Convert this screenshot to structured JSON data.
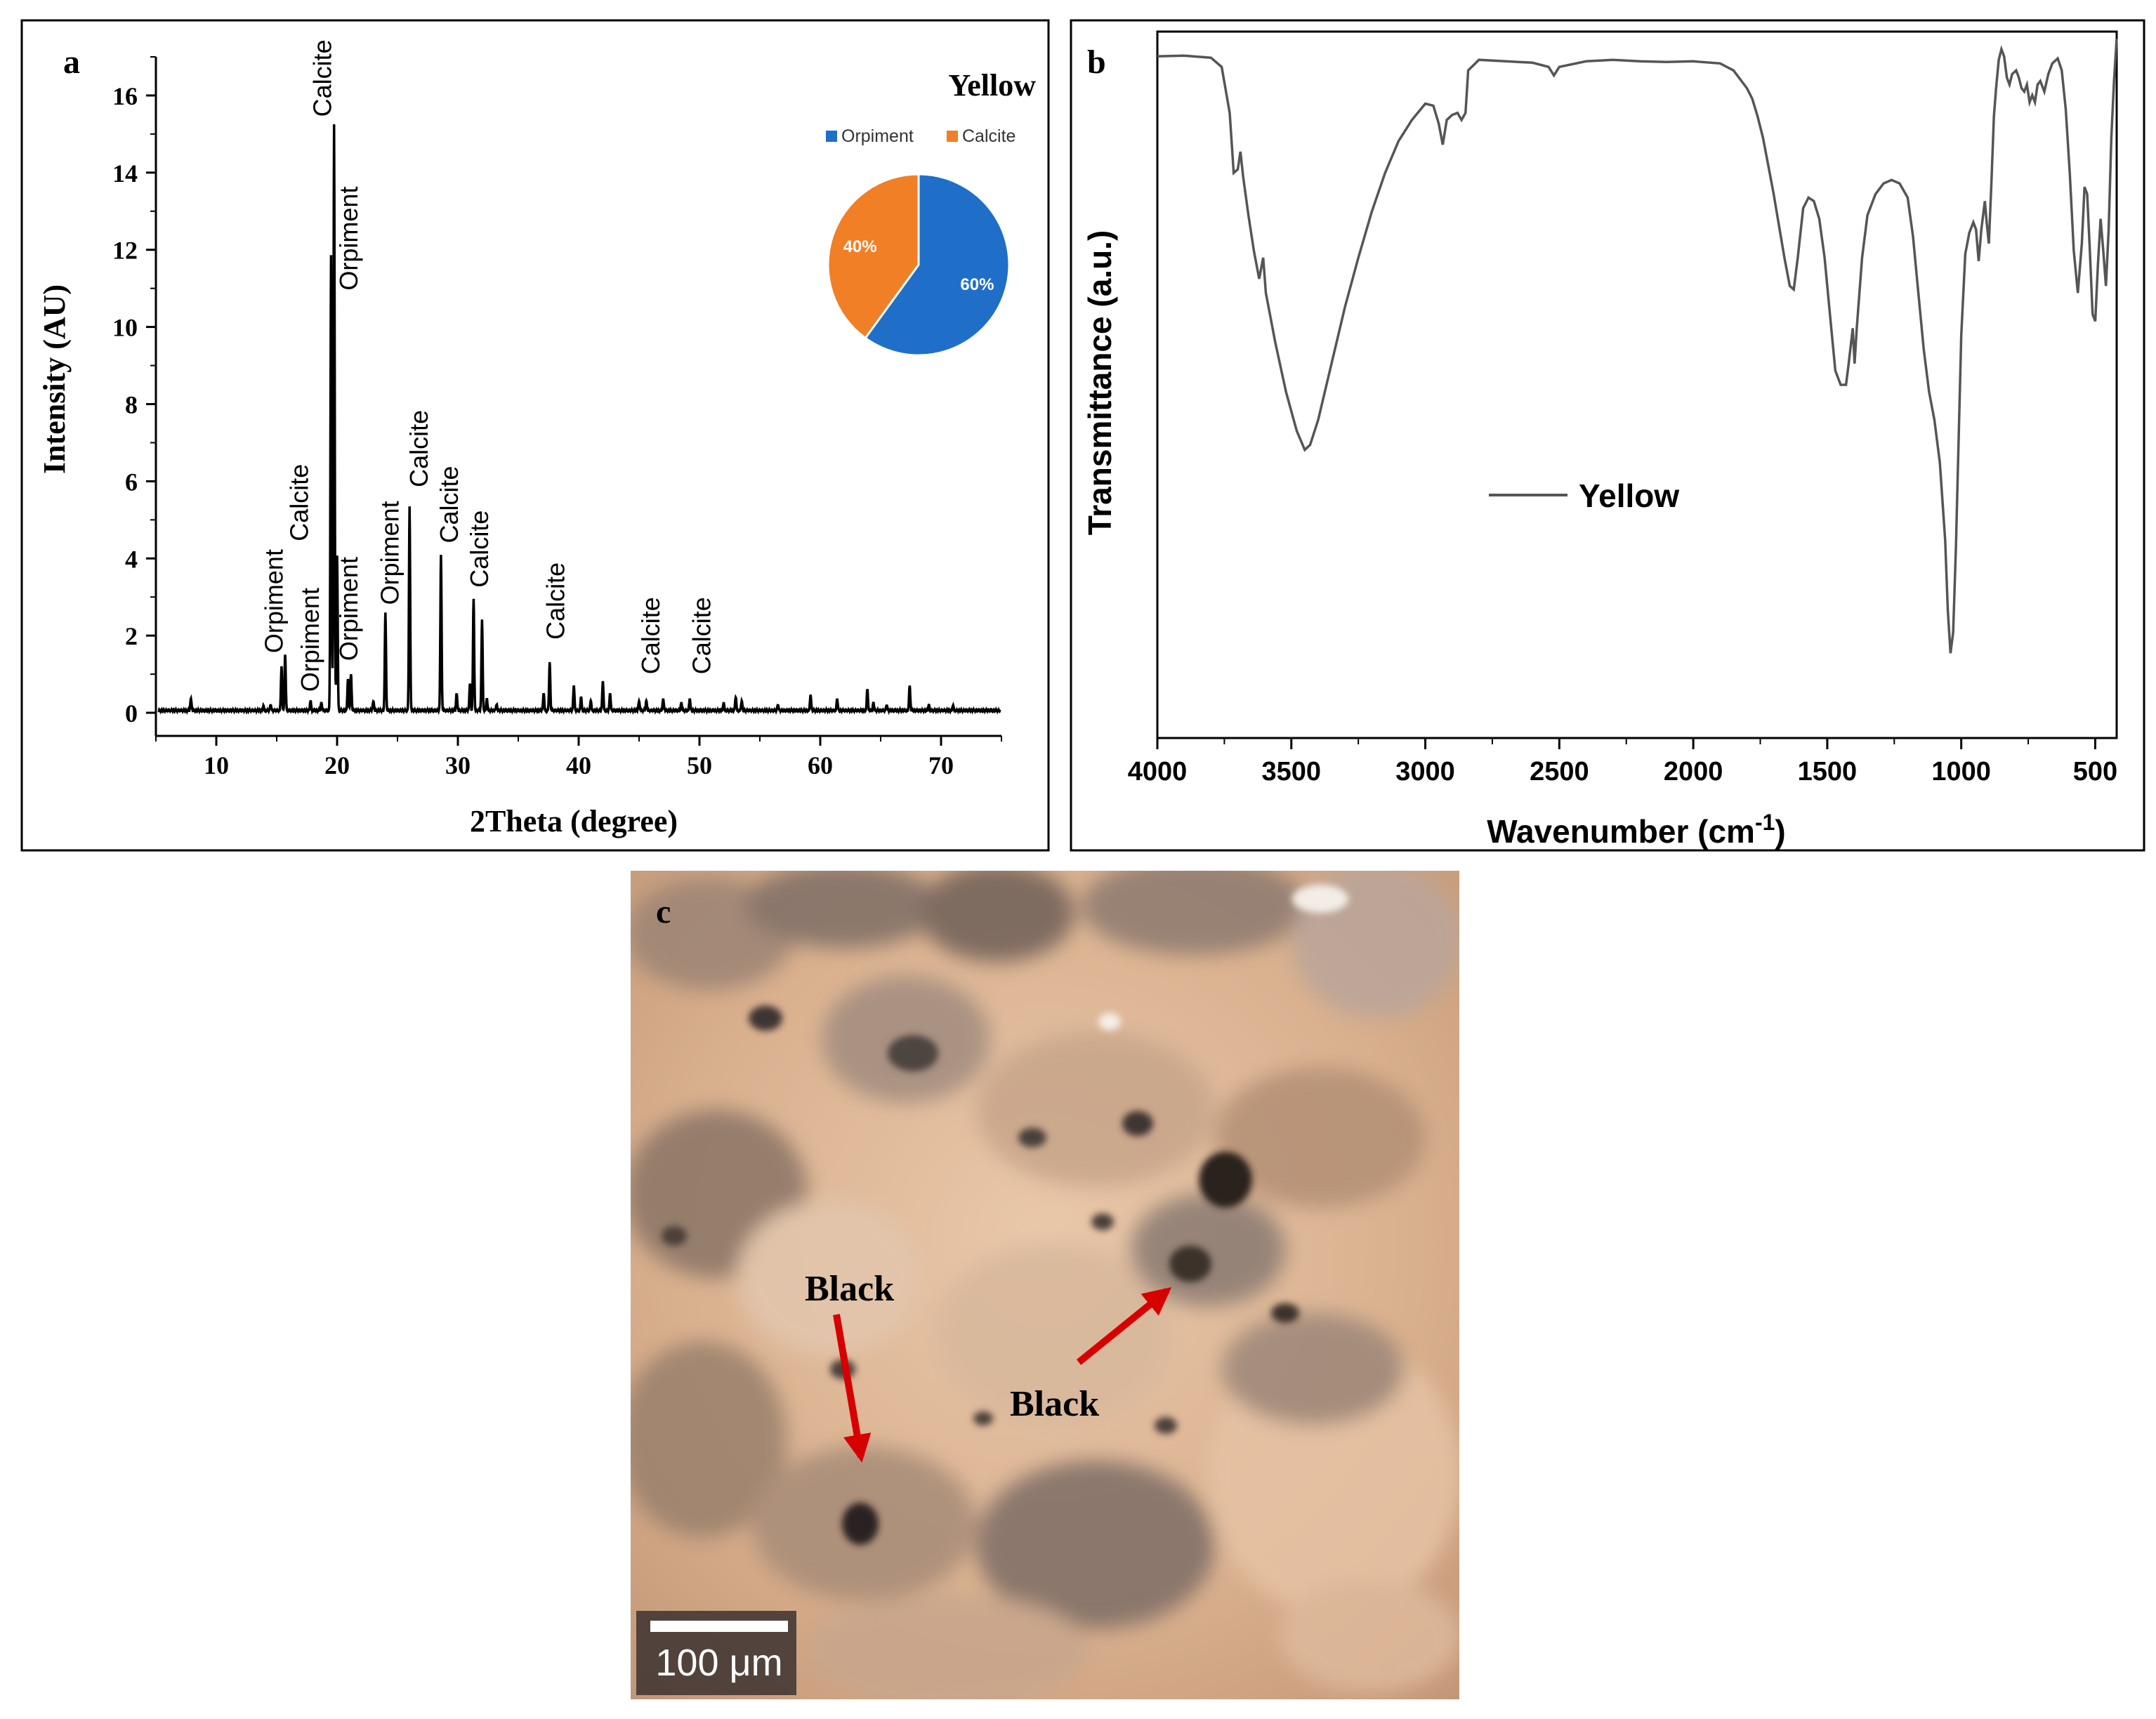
{
  "colors": {
    "xrd_line": "#000000",
    "ftir_line": "#555555",
    "orpiment": "#1f6fc8",
    "calcite": "#f07f25",
    "arrow": "#d60000",
    "frame": "#000000"
  },
  "chart_data": [
    {
      "panel": "a",
      "type": "line",
      "title": "Yellow",
      "xlabel": "2Theta (degree)",
      "ylabel": "Intensity (AU)",
      "xlim": [
        5,
        75
      ],
      "ylim": [
        -0.6,
        17
      ],
      "xticks": [
        10,
        20,
        30,
        40,
        50,
        60,
        70
      ],
      "yticks": [
        0,
        2,
        4,
        6,
        8,
        10,
        12,
        14,
        16
      ],
      "grid": false,
      "baseline": 0.06,
      "peaks": [
        {
          "x": 7.9,
          "y": 0.32
        },
        {
          "x": 13.9,
          "y": 0.12
        },
        {
          "x": 14.5,
          "y": 0.15
        },
        {
          "x": 15.4,
          "y": 1.15
        },
        {
          "x": 15.7,
          "y": 1.45
        },
        {
          "x": 17.8,
          "y": 0.25
        },
        {
          "x": 18.7,
          "y": 0.2
        },
        {
          "x": 19.5,
          "y": 11.8
        },
        {
          "x": 19.75,
          "y": 15.2
        },
        {
          "x": 20.0,
          "y": 4.0
        },
        {
          "x": 20.9,
          "y": 0.8
        },
        {
          "x": 21.15,
          "y": 0.95
        },
        {
          "x": 23.0,
          "y": 0.25
        },
        {
          "x": 24.0,
          "y": 2.55
        },
        {
          "x": 26.0,
          "y": 5.3
        },
        {
          "x": 28.6,
          "y": 4.05
        },
        {
          "x": 29.9,
          "y": 0.45
        },
        {
          "x": 31.0,
          "y": 0.7
        },
        {
          "x": 31.3,
          "y": 2.9
        },
        {
          "x": 32.0,
          "y": 2.35
        },
        {
          "x": 32.4,
          "y": 0.3
        },
        {
          "x": 33.2,
          "y": 0.15
        },
        {
          "x": 37.1,
          "y": 0.45
        },
        {
          "x": 37.6,
          "y": 1.25
        },
        {
          "x": 39.6,
          "y": 0.65
        },
        {
          "x": 40.2,
          "y": 0.35
        },
        {
          "x": 41.0,
          "y": 0.25
        },
        {
          "x": 42.0,
          "y": 0.75
        },
        {
          "x": 42.6,
          "y": 0.45
        },
        {
          "x": 45.0,
          "y": 0.25
        },
        {
          "x": 45.6,
          "y": 0.25
        },
        {
          "x": 47.0,
          "y": 0.3
        },
        {
          "x": 48.5,
          "y": 0.2
        },
        {
          "x": 49.2,
          "y": 0.3
        },
        {
          "x": 52.0,
          "y": 0.2
        },
        {
          "x": 53.0,
          "y": 0.35
        },
        {
          "x": 53.5,
          "y": 0.25
        },
        {
          "x": 56.5,
          "y": 0.15
        },
        {
          "x": 59.2,
          "y": 0.4
        },
        {
          "x": 61.4,
          "y": 0.3
        },
        {
          "x": 63.9,
          "y": 0.55
        },
        {
          "x": 64.4,
          "y": 0.2
        },
        {
          "x": 65.5,
          "y": 0.15
        },
        {
          "x": 67.4,
          "y": 0.65
        },
        {
          "x": 69.0,
          "y": 0.15
        },
        {
          "x": 71.0,
          "y": 0.12
        }
      ],
      "annotations": [
        {
          "text": "Orpiment",
          "x": 14.8,
          "y": 1.4
        },
        {
          "text": "Calcite",
          "x": 16.9,
          "y": 4.3
        },
        {
          "text": "Orpiment",
          "x": 17.8,
          "y": 0.4
        },
        {
          "text": "Calcite",
          "x": 18.8,
          "y": 15.3
        },
        {
          "text": "Orpiment",
          "x": 21.0,
          "y": 10.8
        },
        {
          "text": "Orpiment",
          "x": 21.0,
          "y": 1.2
        },
        {
          "text": "Orpiment",
          "x": 24.4,
          "y": 2.65
        },
        {
          "text": "Calcite",
          "x": 26.8,
          "y": 5.7
        },
        {
          "text": "Calcite",
          "x": 29.3,
          "y": 4.25
        },
        {
          "text": "Calcite",
          "x": 31.8,
          "y": 3.1
        },
        {
          "text": "Calcite",
          "x": 38.1,
          "y": 1.75
        },
        {
          "text": "Calcite",
          "x": 46.0,
          "y": 0.85
        },
        {
          "text": "Calcite",
          "x": 50.2,
          "y": 0.85
        }
      ],
      "inset_pie": {
        "type": "pie",
        "legend": [
          "Orpiment",
          "Calcite"
        ],
        "slices": [
          {
            "name": "Orpiment",
            "value": 60,
            "label": "60%"
          },
          {
            "name": "Calcite",
            "value": 40,
            "label": "40%"
          }
        ]
      }
    },
    {
      "panel": "b",
      "type": "line",
      "xlabel_main": "Wavenumber (cm",
      "xlabel_sup": "-1",
      "xlabel_close": ")",
      "ylabel": "Transmittance (a.u.)",
      "legend": [
        "Yellow"
      ],
      "xlim": [
        4000,
        420
      ],
      "xreversed": true,
      "ylim": [
        0,
        100
      ],
      "yticks_labels": false,
      "xticks": [
        4000,
        3500,
        3000,
        2500,
        2000,
        1500,
        1000,
        500
      ],
      "series": [
        {
          "name": "Yellow",
          "points": [
            [
              4000,
              96.5
            ],
            [
              3900,
              96.6
            ],
            [
              3800,
              96.3
            ],
            [
              3760,
              95.0
            ],
            [
              3730,
              88.5
            ],
            [
              3715,
              80.0
            ],
            [
              3700,
              80.5
            ],
            [
              3690,
              83.0
            ],
            [
              3680,
              79.5
            ],
            [
              3660,
              74.0
            ],
            [
              3640,
              69.0
            ],
            [
              3620,
              65.0
            ],
            [
              3605,
              68.0
            ],
            [
              3595,
              63.0
            ],
            [
              3560,
              56.0
            ],
            [
              3520,
              49.0
            ],
            [
              3480,
              43.5
            ],
            [
              3450,
              40.8
            ],
            [
              3430,
              41.5
            ],
            [
              3400,
              45.0
            ],
            [
              3350,
              53.0
            ],
            [
              3300,
              61.0
            ],
            [
              3250,
              68.0
            ],
            [
              3200,
              74.5
            ],
            [
              3150,
              80.0
            ],
            [
              3100,
              84.5
            ],
            [
              3050,
              87.5
            ],
            [
              3000,
              89.8
            ],
            [
              2970,
              89.5
            ],
            [
              2950,
              87.0
            ],
            [
              2935,
              84.0
            ],
            [
              2920,
              87.5
            ],
            [
              2900,
              88.2
            ],
            [
              2880,
              88.5
            ],
            [
              2865,
              87.5
            ],
            [
              2850,
              88.5
            ],
            [
              2840,
              94.5
            ],
            [
              2800,
              96.0
            ],
            [
              2700,
              95.8
            ],
            [
              2600,
              95.6
            ],
            [
              2540,
              95.0
            ],
            [
              2520,
              93.8
            ],
            [
              2500,
              95.0
            ],
            [
              2400,
              95.8
            ],
            [
              2300,
              96.0
            ],
            [
              2200,
              95.8
            ],
            [
              2100,
              95.7
            ],
            [
              2000,
              95.8
            ],
            [
              1900,
              95.5
            ],
            [
              1850,
              94.5
            ],
            [
              1800,
              92.0
            ],
            [
              1780,
              90.5
            ],
            [
              1760,
              88.0
            ],
            [
              1740,
              85.0
            ],
            [
              1720,
              81.0
            ],
            [
              1700,
              77.0
            ],
            [
              1680,
              72.5
            ],
            [
              1660,
              68.0
            ],
            [
              1640,
              64.0
            ],
            [
              1625,
              63.5
            ],
            [
              1610,
              68.0
            ],
            [
              1590,
              75.0
            ],
            [
              1570,
              76.5
            ],
            [
              1550,
              76.0
            ],
            [
              1530,
              73.5
            ],
            [
              1510,
              68.0
            ],
            [
              1490,
              60.0
            ],
            [
              1470,
              52.0
            ],
            [
              1450,
              50.0
            ],
            [
              1430,
              50.0
            ],
            [
              1420,
              53.0
            ],
            [
              1405,
              58.0
            ],
            [
              1398,
              53.0
            ],
            [
              1390,
              58.0
            ],
            [
              1370,
              68.0
            ],
            [
              1350,
              74.0
            ],
            [
              1320,
              77.0
            ],
            [
              1290,
              78.5
            ],
            [
              1260,
              79.0
            ],
            [
              1230,
              78.5
            ],
            [
              1200,
              76.5
            ],
            [
              1180,
              71.0
            ],
            [
              1160,
              63.0
            ],
            [
              1140,
              55.0
            ],
            [
              1120,
              49.0
            ],
            [
              1100,
              45.0
            ],
            [
              1080,
              39.0
            ],
            [
              1060,
              28.0
            ],
            [
              1050,
              18.0
            ],
            [
              1040,
              12.0
            ],
            [
              1030,
              15.0
            ],
            [
              1020,
              27.0
            ],
            [
              1010,
              42.0
            ],
            [
              1000,
              57.0
            ],
            [
              985,
              68.5
            ],
            [
              970,
              71.5
            ],
            [
              955,
              73.0
            ],
            [
              945,
              72.0
            ],
            [
              935,
              67.5
            ],
            [
              925,
              72.0
            ],
            [
              912,
              76.0
            ],
            [
              905,
              73.0
            ],
            [
              897,
              70.0
            ],
            [
              888,
              78.0
            ],
            [
              878,
              88.0
            ],
            [
              870,
              92.0
            ],
            [
              860,
              96.0
            ],
            [
              850,
              97.5
            ],
            [
              840,
              96.5
            ],
            [
              830,
              93.5
            ],
            [
              820,
              92.5
            ],
            [
              810,
              94.0
            ],
            [
              795,
              94.5
            ],
            [
              785,
              93.5
            ],
            [
              775,
              92.0
            ],
            [
              765,
              91.5
            ],
            [
              755,
              92.5
            ],
            [
              745,
              90.0
            ],
            [
              735,
              91.0
            ],
            [
              725,
              90.0
            ],
            [
              715,
              92.5
            ],
            [
              705,
              93.0
            ],
            [
              690,
              91.5
            ],
            [
              675,
              94.0
            ],
            [
              660,
              95.5
            ],
            [
              640,
              96.2
            ],
            [
              625,
              94.5
            ],
            [
              610,
              89.0
            ],
            [
              595,
              80.0
            ],
            [
              580,
              69.0
            ],
            [
              565,
              63.0
            ],
            [
              550,
              70.0
            ],
            [
              540,
              78.0
            ],
            [
              530,
              77.0
            ],
            [
              520,
              69.0
            ],
            [
              510,
              60.0
            ],
            [
              500,
              59.0
            ],
            [
              490,
              67.0
            ],
            [
              480,
              73.5
            ],
            [
              470,
              69.0
            ],
            [
              460,
              64.0
            ],
            [
              450,
              72.0
            ],
            [
              440,
              85.0
            ],
            [
              430,
              93.0
            ],
            [
              420,
              99.0
            ]
          ]
        }
      ]
    }
  ],
  "panels": {
    "a": {
      "letter": "a"
    },
    "b": {
      "letter": "b"
    },
    "c": {
      "letter": "c",
      "labels": [
        "Black",
        "Black"
      ],
      "scale_bar": "100 μm"
    }
  }
}
